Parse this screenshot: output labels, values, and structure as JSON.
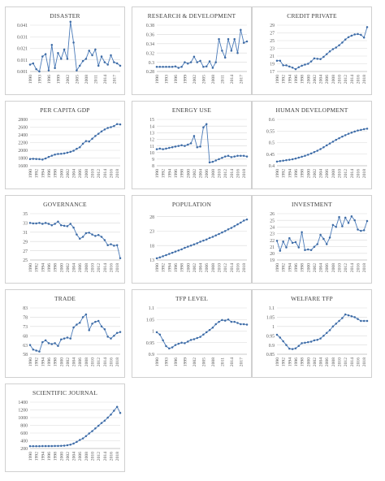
{
  "chart_data": [
    {
      "type": "line",
      "title": "DISASTER",
      "ylim": [
        0.001,
        0.041
      ],
      "yticks": [
        0.001,
        0.011,
        0.021,
        0.031,
        0.041
      ],
      "yticklabels": [
        "0.001",
        "0.011",
        "0.021",
        "0.031",
        "0.041"
      ],
      "xticklabels": [
        "1990",
        "1993",
        "1996",
        "1999",
        "2002",
        "2005",
        "2008",
        "2011",
        "2014",
        "2017"
      ],
      "x": [
        1990,
        1991,
        1992,
        1993,
        1994,
        1995,
        1996,
        1997,
        1998,
        1999,
        2000,
        2001,
        2002,
        2003,
        2004,
        2005,
        2006,
        2007,
        2008,
        2009,
        2010,
        2011,
        2012,
        2013,
        2014,
        2015,
        2016,
        2017,
        2018,
        2019
      ],
      "values": [
        0.007,
        0.008,
        0.003,
        0.001,
        0.014,
        0.016,
        0.002,
        0.024,
        0.004,
        0.017,
        0.012,
        0.02,
        0.012,
        0.044,
        0.026,
        0.002,
        0.006,
        0.01,
        0.012,
        0.019,
        0.015,
        0.02,
        0.006,
        0.014,
        0.009,
        0.007,
        0.015,
        0.009,
        0.008,
        0.006
      ]
    },
    {
      "type": "line",
      "title": "RESEARCH & DEVELOPMENT",
      "ylim": [
        0.28,
        0.38
      ],
      "yticks": [
        0.28,
        0.3,
        0.32,
        0.34,
        0.36,
        0.38
      ],
      "yticklabels": [
        "0.28",
        "0.3",
        "0.32",
        "0.34",
        "0.36",
        "0.38"
      ],
      "xticklabels": [
        "1990",
        "1993",
        "1996",
        "1999",
        "2002",
        "2005",
        "2008",
        "2011",
        "2014",
        "2017"
      ],
      "x": [
        1990,
        1991,
        1992,
        1993,
        1994,
        1995,
        1996,
        1997,
        1998,
        1999,
        2000,
        2001,
        2002,
        2003,
        2004,
        2005,
        2006,
        2007,
        2008,
        2009,
        2010,
        2011,
        2012,
        2013,
        2014,
        2015,
        2016,
        2017,
        2018,
        2019
      ],
      "values": [
        0.29,
        0.29,
        0.29,
        0.29,
        0.29,
        0.29,
        0.291,
        0.288,
        0.29,
        0.3,
        0.297,
        0.3,
        0.312,
        0.3,
        0.303,
        0.29,
        0.291,
        0.302,
        0.288,
        0.3,
        0.35,
        0.325,
        0.31,
        0.35,
        0.325,
        0.35,
        0.32,
        0.37,
        0.342,
        0.345
      ]
    },
    {
      "type": "line",
      "title": "CREDIT PRIVATE",
      "ylim": [
        17,
        29
      ],
      "yticks": [
        17,
        19,
        21,
        23,
        25,
        27,
        29
      ],
      "yticklabels": [
        "17",
        "19",
        "21",
        "23",
        "25",
        "27",
        "29"
      ],
      "xticklabels": [
        "1990",
        "1992",
        "1994",
        "1996",
        "1998",
        "2000",
        "2002",
        "2004",
        "2006",
        "2008",
        "2010",
        "2012",
        "2014",
        "2016",
        "2018"
      ],
      "x": [
        1990,
        1991,
        1992,
        1993,
        1994,
        1995,
        1996,
        1997,
        1998,
        1999,
        2000,
        2001,
        2002,
        2003,
        2004,
        2005,
        2006,
        2007,
        2008,
        2009,
        2010,
        2011,
        2012,
        2013,
        2014,
        2015,
        2016,
        2017,
        2018,
        2019
      ],
      "values": [
        19.8,
        19.8,
        18.6,
        18.6,
        18.3,
        18.0,
        17.6,
        18.1,
        18.5,
        18.8,
        19.0,
        19.6,
        20.4,
        20.3,
        20.2,
        20.8,
        21.5,
        22.2,
        22.8,
        23.2,
        23.8,
        24.5,
        25.3,
        25.9,
        26.3,
        26.6,
        26.7,
        26.5,
        25.8,
        28.5
      ]
    },
    {
      "type": "line",
      "title": "PER CAPITA GDP",
      "ylim": [
        1600,
        2800
      ],
      "yticks": [
        1600,
        1800,
        2000,
        2200,
        2400,
        2600,
        2800
      ],
      "yticklabels": [
        "1600",
        "1800",
        "2000",
        "2200",
        "2400",
        "2600",
        "2800"
      ],
      "xticklabels": [
        "1990",
        "1992",
        "1994",
        "1996",
        "1998",
        "2000",
        "2002",
        "2004",
        "2006",
        "2008",
        "2010",
        "2012",
        "2014",
        "2016",
        "2018"
      ],
      "x": [
        1990,
        1991,
        1992,
        1993,
        1994,
        1995,
        1996,
        1997,
        1998,
        1999,
        2000,
        2001,
        2002,
        2003,
        2004,
        2005,
        2006,
        2007,
        2008,
        2009,
        2010,
        2011,
        2012,
        2013,
        2014,
        2015,
        2016,
        2017,
        2018,
        2019
      ],
      "values": [
        1775,
        1780,
        1775,
        1770,
        1760,
        1790,
        1830,
        1860,
        1890,
        1905,
        1910,
        1920,
        1940,
        1960,
        1990,
        2040,
        2080,
        2170,
        2240,
        2230,
        2300,
        2370,
        2430,
        2490,
        2540,
        2580,
        2600,
        2630,
        2680,
        2670
      ]
    },
    {
      "type": "line",
      "title": "ENERGY USE",
      "ylim": [
        8,
        15
      ],
      "yticks": [
        8,
        9,
        10,
        11,
        12,
        13,
        14,
        15
      ],
      "yticklabels": [
        "8",
        "9",
        "10",
        "11",
        "12",
        "13",
        "14",
        "15"
      ],
      "xticklabels": [
        "1990",
        "1992",
        "1994",
        "1996",
        "1998",
        "2000",
        "2002",
        "2004",
        "2006",
        "2008",
        "2010",
        "2012",
        "2014",
        "2016",
        "2018"
      ],
      "x": [
        1990,
        1991,
        1992,
        1993,
        1994,
        1995,
        1996,
        1997,
        1998,
        1999,
        2000,
        2001,
        2002,
        2003,
        2004,
        2005,
        2006,
        2007,
        2008,
        2009,
        2010,
        2011,
        2012,
        2013,
        2014,
        2015,
        2016,
        2017,
        2018,
        2019
      ],
      "values": [
        10.5,
        10.6,
        10.5,
        10.6,
        10.7,
        10.8,
        10.9,
        11.0,
        11.1,
        11.0,
        11.2,
        11.4,
        12.5,
        10.8,
        10.9,
        13.8,
        14.3,
        8.5,
        8.6,
        8.8,
        9.0,
        9.2,
        9.4,
        9.5,
        9.3,
        9.4,
        9.5,
        9.5,
        9.5,
        9.4
      ]
    },
    {
      "type": "line",
      "title": "HUMAN DEVELOPMENT",
      "ylim": [
        0.4,
        0.6
      ],
      "yticks": [
        0.4,
        0.45,
        0.5,
        0.55,
        0.6
      ],
      "yticklabels": [
        "0.4",
        "0.45",
        "0.5",
        "0.55",
        "0.6"
      ],
      "xticklabels": [
        "1990",
        "1992",
        "1994",
        "1996",
        "1998",
        "2000",
        "2002",
        "2004",
        "2006",
        "2008",
        "2010",
        "2012",
        "2014",
        "2016",
        "2018"
      ],
      "x": [
        1990,
        1991,
        1992,
        1993,
        1994,
        1995,
        1996,
        1997,
        1998,
        1999,
        2000,
        2001,
        2002,
        2003,
        2004,
        2005,
        2006,
        2007,
        2008,
        2009,
        2010,
        2011,
        2012,
        2013,
        2014,
        2015,
        2016,
        2017,
        2018,
        2019
      ],
      "values": [
        0.418,
        0.42,
        0.422,
        0.424,
        0.426,
        0.428,
        0.431,
        0.435,
        0.439,
        0.443,
        0.448,
        0.453,
        0.459,
        0.465,
        0.472,
        0.48,
        0.488,
        0.496,
        0.504,
        0.512,
        0.519,
        0.526,
        0.532,
        0.538,
        0.543,
        0.548,
        0.552,
        0.555,
        0.558,
        0.56
      ]
    },
    {
      "type": "line",
      "title": "GOVERNANCE",
      "ylim": [
        25,
        35
      ],
      "yticks": [
        25,
        27,
        29,
        31,
        33,
        35
      ],
      "yticklabels": [
        "25",
        "27",
        "29",
        "31",
        "33",
        "35"
      ],
      "xticklabels": [
        "1990",
        "1992",
        "1994",
        "1996",
        "1998",
        "2000",
        "2002",
        "2004",
        "2006",
        "2008",
        "2010",
        "2012",
        "2014",
        "2016",
        "2018"
      ],
      "x": [
        1990,
        1991,
        1992,
        1993,
        1994,
        1995,
        1996,
        1997,
        1998,
        1999,
        2000,
        2001,
        2002,
        2003,
        2004,
        2005,
        2006,
        2007,
        2008,
        2009,
        2010,
        2011,
        2012,
        2013,
        2014,
        2015,
        2016,
        2017,
        2018,
        2019
      ],
      "values": [
        33.0,
        32.9,
        32.9,
        33.0,
        32.8,
        33.0,
        32.8,
        32.5,
        32.8,
        33.3,
        32.5,
        32.4,
        32.3,
        32.8,
        32.0,
        30.5,
        29.6,
        30.0,
        30.8,
        30.9,
        30.5,
        30.2,
        30.4,
        30.0,
        29.3,
        28.2,
        28.4,
        28.1,
        28.2,
        25.4
      ]
    },
    {
      "type": "line",
      "title": "POPULATION",
      "ylim": [
        13,
        29
      ],
      "yticks": [
        13,
        18,
        23,
        28
      ],
      "yticklabels": [
        "13",
        "18",
        "23",
        "28"
      ],
      "xticklabels": [
        "1990",
        "1992",
        "1994",
        "1996",
        "1998",
        "2000",
        "2002",
        "2004",
        "2006",
        "2008",
        "2010",
        "2012",
        "2014",
        "2016",
        "2018"
      ],
      "x": [
        1990,
        1991,
        1992,
        1993,
        1994,
        1995,
        1996,
        1997,
        1998,
        1999,
        2000,
        2001,
        2002,
        2003,
        2004,
        2005,
        2006,
        2007,
        2008,
        2009,
        2010,
        2011,
        2012,
        2013,
        2014,
        2015,
        2016,
        2017,
        2018,
        2019
      ],
      "values": [
        13.6,
        13.9,
        14.3,
        14.7,
        15.1,
        15.5,
        15.9,
        16.3,
        16.7,
        17.2,
        17.6,
        18.0,
        18.4,
        18.8,
        19.3,
        19.7,
        20.1,
        20.6,
        21.0,
        21.5,
        22.0,
        22.5,
        23.0,
        23.6,
        24.1,
        24.7,
        25.3,
        25.9,
        26.6,
        27.0
      ]
    },
    {
      "type": "line",
      "title": "INVESTMENT",
      "ylim": [
        19,
        26
      ],
      "yticks": [
        19,
        20,
        21,
        22,
        23,
        24,
        25,
        26
      ],
      "yticklabels": [
        "19",
        "20",
        "21",
        "22",
        "23",
        "24",
        "25",
        "26"
      ],
      "xticklabels": [
        "1990",
        "1992",
        "1994",
        "1996",
        "1998",
        "2000",
        "2002",
        "2004",
        "2006",
        "2008",
        "2010",
        "2012",
        "2014",
        "2016",
        "2018"
      ],
      "x": [
        1990,
        1991,
        1992,
        1993,
        1994,
        1995,
        1996,
        1997,
        1998,
        1999,
        2000,
        2001,
        2002,
        2003,
        2004,
        2005,
        2006,
        2007,
        2008,
        2009,
        2010,
        2011,
        2012,
        2013,
        2014,
        2015,
        2016,
        2017,
        2018,
        2019
      ],
      "values": [
        21.9,
        20.4,
        21.8,
        20.9,
        22.3,
        21.6,
        21.7,
        20.9,
        23.2,
        20.5,
        20.6,
        20.5,
        21.0,
        21.4,
        22.8,
        22.2,
        21.4,
        22.4,
        24.3,
        24.0,
        25.5,
        24.1,
        25.4,
        24.6,
        25.6,
        25.0,
        23.6,
        23.4,
        23.5,
        24.9
      ]
    },
    {
      "type": "line",
      "title": "TRADE",
      "ylim": [
        58,
        83
      ],
      "yticks": [
        58,
        63,
        68,
        73,
        78,
        83
      ],
      "yticklabels": [
        "58",
        "63",
        "68",
        "73",
        "78",
        "83"
      ],
      "xticklabels": [
        "1990",
        "1992",
        "1994",
        "1996",
        "1998",
        "2000",
        "2002",
        "2004",
        "2006",
        "2008",
        "2010",
        "2012",
        "2014",
        "2016",
        "2018"
      ],
      "x": [
        1990,
        1991,
        1992,
        1993,
        1994,
        1995,
        1996,
        1997,
        1998,
        1999,
        2000,
        2001,
        2002,
        2003,
        2004,
        2005,
        2006,
        2007,
        2008,
        2009,
        2010,
        2011,
        2012,
        2013,
        2014,
        2015,
        2016,
        2017,
        2018,
        2019
      ],
      "values": [
        63.0,
        60.5,
        60.0,
        59.5,
        64.5,
        65.5,
        64.0,
        63.5,
        64.0,
        62.5,
        66.0,
        66.5,
        67.0,
        66.5,
        72.5,
        74.0,
        75.0,
        78.0,
        79.5,
        71.0,
        74.5,
        75.5,
        76.0,
        73.0,
        71.5,
        67.5,
        66.5,
        68.0,
        69.5,
        70.0
      ]
    },
    {
      "type": "line",
      "title": "TFP LEVEL",
      "ylim": [
        0.9,
        1.1
      ],
      "yticks": [
        0.9,
        0.95,
        1,
        1.05,
        1.1
      ],
      "yticklabels": [
        "0.9",
        "0.95",
        "1",
        "1.05",
        "1.1"
      ],
      "xticklabels": [
        "1990",
        "1993",
        "1996",
        "1999",
        "2002",
        "2005",
        "2008",
        "2011",
        "2014",
        "2017"
      ],
      "x": [
        1990,
        1991,
        1992,
        1993,
        1994,
        1995,
        1996,
        1997,
        1998,
        1999,
        2000,
        2001,
        2002,
        2003,
        2004,
        2005,
        2006,
        2007,
        2008,
        2009,
        2010,
        2011,
        2012,
        2013,
        2014,
        2015,
        2016,
        2017,
        2018,
        2019
      ],
      "values": [
        0.995,
        0.985,
        0.96,
        0.935,
        0.925,
        0.93,
        0.94,
        0.945,
        0.95,
        0.948,
        0.955,
        0.962,
        0.965,
        0.97,
        0.975,
        0.985,
        0.995,
        1.005,
        1.015,
        1.03,
        1.04,
        1.048,
        1.045,
        1.05,
        1.04,
        1.04,
        1.035,
        1.03,
        1.03,
        1.028
      ]
    },
    {
      "type": "line",
      "title": "WELFARE TFP",
      "ylim": [
        0.85,
        1.1
      ],
      "yticks": [
        0.85,
        0.9,
        0.95,
        1,
        1.05,
        1.1
      ],
      "yticklabels": [
        "0.85",
        "0.9",
        "0.95",
        "1",
        "1.05",
        "1.1"
      ],
      "xticklabels": [
        "1990",
        "1992",
        "1994",
        "1996",
        "1998",
        "2000",
        "2002",
        "2004",
        "2006",
        "2008",
        "2010",
        "2012",
        "2014",
        "2016",
        "2018"
      ],
      "x": [
        1990,
        1991,
        1992,
        1993,
        1994,
        1995,
        1996,
        1997,
        1998,
        1999,
        2000,
        2001,
        2002,
        2003,
        2004,
        2005,
        2006,
        2007,
        2008,
        2009,
        2010,
        2011,
        2012,
        2013,
        2014,
        2015,
        2016,
        2017,
        2018,
        2019
      ],
      "values": [
        0.955,
        0.94,
        0.92,
        0.9,
        0.88,
        0.878,
        0.882,
        0.895,
        0.91,
        0.912,
        0.915,
        0.918,
        0.925,
        0.928,
        0.935,
        0.95,
        0.965,
        0.98,
        1.0,
        1.015,
        1.03,
        1.045,
        1.065,
        1.06,
        1.055,
        1.05,
        1.04,
        1.03,
        1.03,
        1.03
      ]
    },
    {
      "type": "line",
      "title": "SCIENTIFIC JOURNAL",
      "ylim": [
        200,
        1400
      ],
      "yticks": [
        200,
        400,
        600,
        800,
        1000,
        1200,
        1400
      ],
      "yticklabels": [
        "200",
        "400",
        "600",
        "800",
        "1000",
        "1200",
        "1400"
      ],
      "xticklabels": [
        "1990",
        "1992",
        "1994",
        "1996",
        "1998",
        "2000",
        "2002",
        "2004",
        "2006",
        "2008",
        "2010",
        "2012",
        "2014",
        "2016",
        "2018"
      ],
      "x": [
        1990,
        1991,
        1992,
        1993,
        1994,
        1995,
        1996,
        1997,
        1998,
        1999,
        2000,
        2001,
        2002,
        2003,
        2004,
        2005,
        2006,
        2007,
        2008,
        2009,
        2010,
        2011,
        2012,
        2013,
        2014,
        2015,
        2016,
        2017,
        2018,
        2019
      ],
      "values": [
        260,
        260,
        260,
        260,
        262,
        262,
        263,
        263,
        265,
        266,
        268,
        275,
        285,
        300,
        330,
        370,
        420,
        460,
        520,
        590,
        650,
        720,
        790,
        860,
        920,
        1000,
        1080,
        1180,
        1280,
        1120
      ]
    }
  ]
}
